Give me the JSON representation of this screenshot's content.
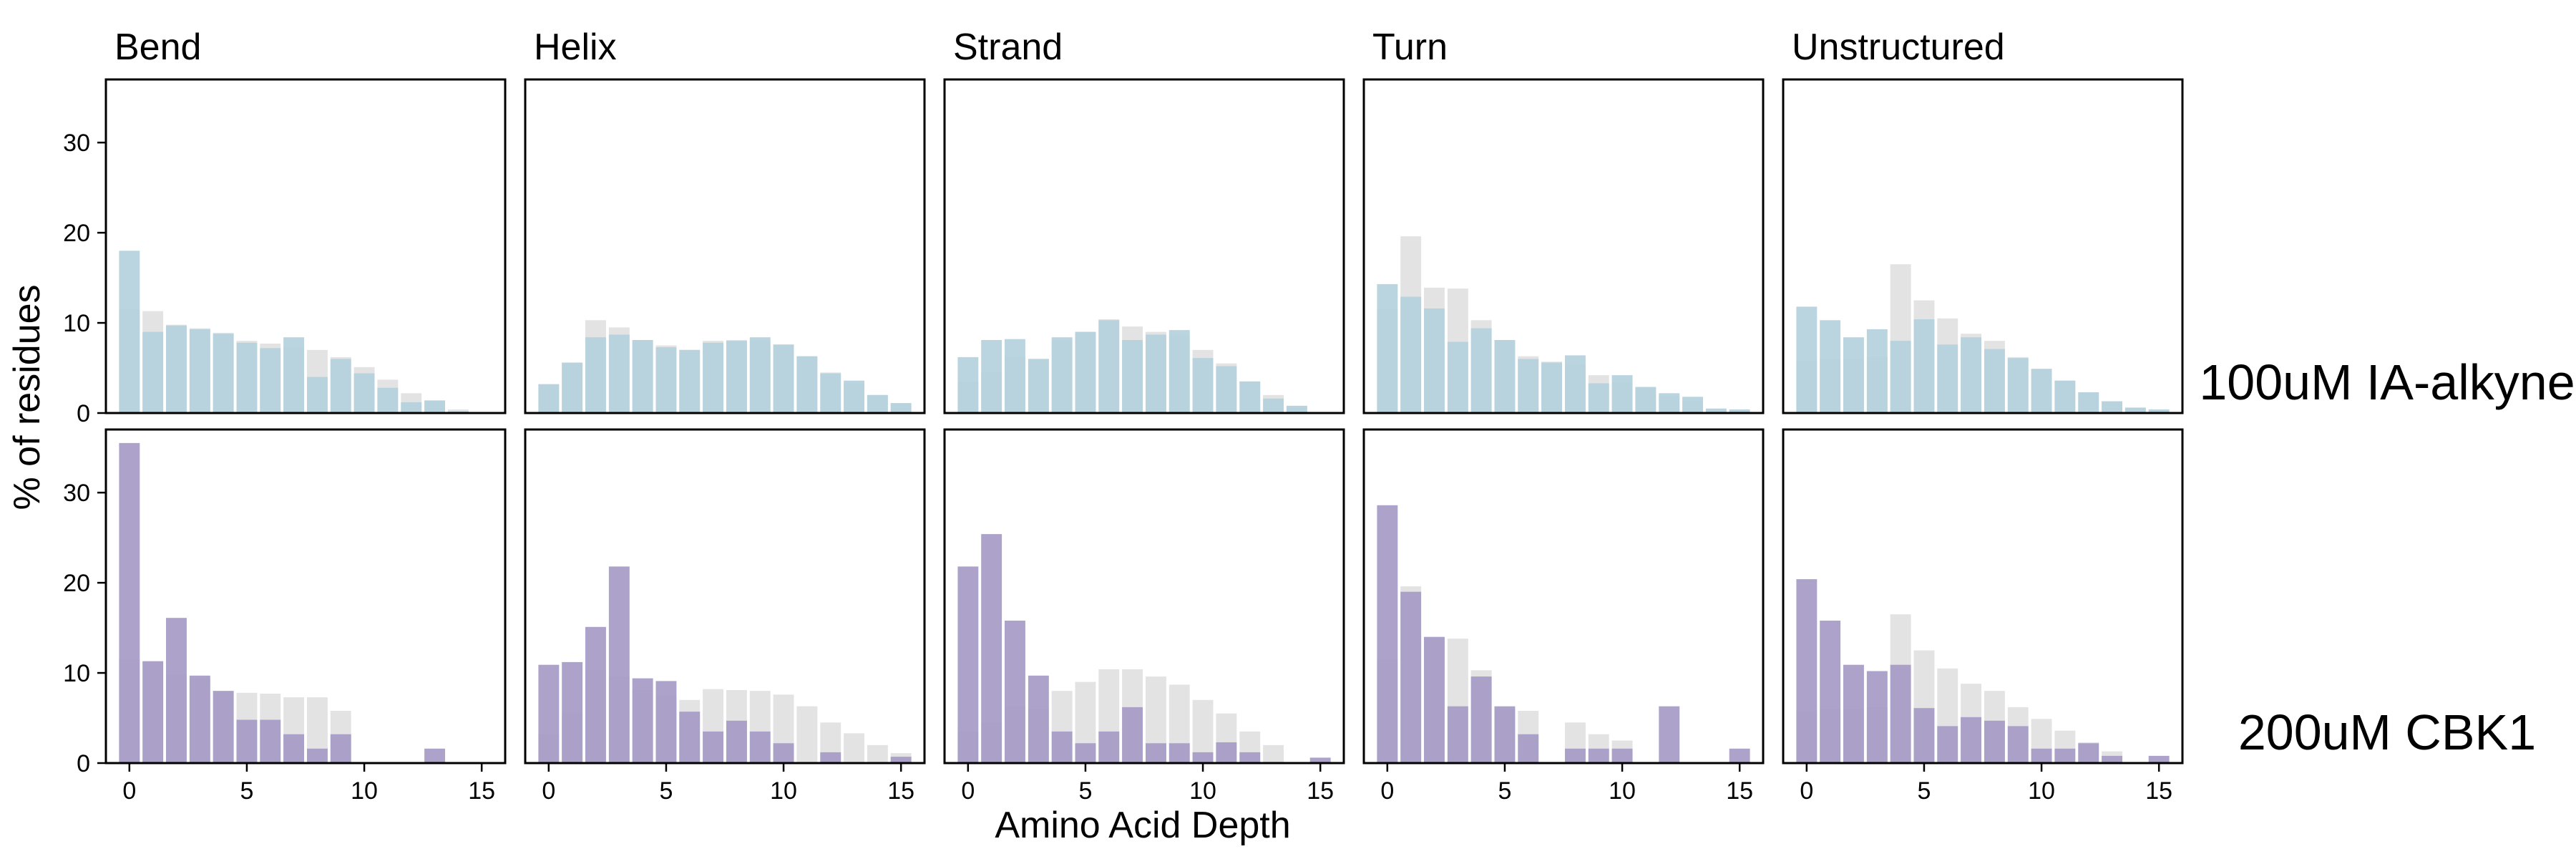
{
  "figure": {
    "ylabel": "% of residues",
    "xlabel": "Amino Acid Depth",
    "columns": [
      "Bend",
      "Helix",
      "Strand",
      "Turn",
      "Unstructured"
    ],
    "rows": [
      "100uM IA-alkyne",
      "200uM CBK1"
    ],
    "colors": {
      "background_bars": "#e3e3e3",
      "row1_bars": "#b3d0dd",
      "row2_bars": "#a398c4",
      "axes": "#000000"
    }
  },
  "chart_data": {
    "type": "bar",
    "layout": "faceted grid, 2 rows x 5 columns, shared axes",
    "xlim": [
      -1,
      16
    ],
    "ylim": [
      0,
      37
    ],
    "xticks": [
      0,
      5,
      10,
      15
    ],
    "yticks": [
      0,
      10,
      20,
      30
    ],
    "grid": false,
    "x": [
      0,
      1,
      2,
      3,
      4,
      5,
      6,
      7,
      8,
      9,
      10,
      11,
      12,
      13,
      14,
      15
    ],
    "panels": [
      {
        "row": "100uM IA-alkyne",
        "column": "Bend",
        "series": [
          {
            "values": [
              11.5,
              11.3,
              9.8,
              9.4,
              8.9,
              8.0,
              7.7,
              7.3,
              7.0,
              6.2,
              5.1,
              3.7,
              2.2,
              1.4,
              0.4,
              0.0
            ]
          },
          {
            "values": [
              18.0,
              9.0,
              9.7,
              9.3,
              8.8,
              7.8,
              7.2,
              8.4,
              4.0,
              6.0,
              4.4,
              2.8,
              1.2,
              1.4,
              0.2,
              0.0
            ]
          }
        ]
      },
      {
        "row": "100uM IA-alkyne",
        "column": "Helix",
        "series": [
          {
            "values": [
              3.2,
              5.6,
              10.3,
              9.5,
              8.1,
              7.5,
              7.0,
              8.0,
              8.1,
              8.0,
              7.6,
              6.3,
              4.5,
              3.3,
              2.0,
              1.1
            ]
          },
          {
            "values": [
              3.2,
              5.6,
              8.4,
              8.7,
              8.1,
              7.3,
              7.0,
              7.8,
              8.0,
              8.4,
              7.6,
              6.3,
              4.4,
              3.6,
              2.0,
              1.1
            ]
          }
        ]
      },
      {
        "row": "100uM IA-alkyne",
        "column": "Strand",
        "series": [
          {
            "values": [
              3.5,
              4.5,
              6.3,
              6.0,
              8.0,
              9.0,
              10.4,
              9.6,
              9.0,
              8.7,
              7.0,
              5.5,
              3.5,
              2.0,
              0.8,
              0.0
            ]
          },
          {
            "values": [
              6.2,
              8.1,
              8.2,
              6.0,
              8.4,
              9.0,
              10.3,
              8.1,
              8.7,
              9.2,
              6.1,
              5.2,
              3.5,
              1.6,
              0.8,
              0.0
            ]
          }
        ]
      },
      {
        "row": "100uM IA-alkyne",
        "column": "Turn",
        "series": [
          {
            "values": [
              11.5,
              19.6,
              13.9,
              13.8,
              10.3,
              8.1,
              6.3,
              5.7,
              5.4,
              4.2,
              3.4,
              2.8,
              1.9,
              1.3,
              0.4,
              0.4
            ]
          },
          {
            "values": [
              14.3,
              12.9,
              11.6,
              7.9,
              9.4,
              8.1,
              6.0,
              5.6,
              6.4,
              3.3,
              4.2,
              2.9,
              2.2,
              1.8,
              0.5,
              0.4
            ]
          }
        ]
      },
      {
        "row": "100uM IA-alkyne",
        "column": "Unstructured",
        "series": [
          {
            "values": [
              5.8,
              6.0,
              6.0,
              6.2,
              16.5,
              12.5,
              10.5,
              8.8,
              8.0,
              6.2,
              4.9,
              3.6,
              2.3,
              1.3,
              0.6,
              0.4
            ]
          },
          {
            "values": [
              11.8,
              10.3,
              8.4,
              9.3,
              8.0,
              10.4,
              7.6,
              8.4,
              7.1,
              6.1,
              4.9,
              3.6,
              2.3,
              1.3,
              0.6,
              0.4
            ]
          }
        ]
      },
      {
        "row": "200uM CBK1",
        "column": "Bend",
        "series": [
          {
            "values": [
              11.5,
              11.3,
              9.8,
              9.4,
              8.0,
              7.8,
              7.7,
              7.3,
              7.3,
              5.8,
              0,
              0,
              0,
              0,
              0,
              0
            ]
          },
          {
            "values": [
              35.5,
              11.3,
              16.1,
              9.7,
              8.0,
              4.8,
              4.8,
              3.2,
              1.6,
              3.2,
              0,
              0,
              0,
              1.6,
              0,
              0
            ]
          }
        ]
      },
      {
        "row": "200uM CBK1",
        "column": "Helix",
        "series": [
          {
            "values": [
              3.2,
              5.6,
              10.3,
              9.6,
              8.1,
              7.5,
              7.0,
              8.2,
              8.1,
              8.0,
              7.6,
              6.3,
              4.5,
              3.3,
              2.0,
              1.1
            ]
          },
          {
            "values": [
              10.9,
              11.2,
              15.1,
              21.8,
              9.4,
              9.1,
              5.7,
              3.5,
              4.7,
              3.5,
              2.2,
              0,
              1.2,
              0,
              0,
              0.7
            ]
          }
        ]
      },
      {
        "row": "200uM CBK1",
        "column": "Strand",
        "series": [
          {
            "values": [
              3.5,
              4.5,
              6.3,
              6.0,
              8.0,
              9.0,
              10.4,
              10.4,
              9.6,
              8.7,
              7.0,
              5.5,
              3.5,
              2.0,
              0,
              0
            ]
          },
          {
            "values": [
              21.8,
              25.4,
              15.8,
              9.7,
              3.5,
              2.2,
              3.5,
              6.2,
              2.2,
              2.2,
              1.2,
              2.3,
              1.2,
              0,
              0,
              0.6
            ]
          }
        ]
      },
      {
        "row": "200uM CBK1",
        "column": "Turn",
        "series": [
          {
            "values": [
              11.5,
              19.6,
              13.9,
              13.8,
              10.3,
              6.0,
              5.8,
              0,
              4.5,
              3.2,
              2.5,
              0,
              0,
              0,
              0,
              0
            ]
          },
          {
            "values": [
              28.6,
              19.0,
              14.0,
              6.3,
              9.6,
              6.3,
              3.2,
              0,
              1.6,
              1.6,
              1.6,
              0,
              6.3,
              0,
              0,
              1.6
            ]
          }
        ]
      },
      {
        "row": "200uM CBK1",
        "column": "Unstructured",
        "series": [
          {
            "values": [
              5.8,
              6.0,
              6.0,
              6.2,
              16.5,
              12.5,
              10.5,
              8.8,
              8.0,
              6.2,
              4.9,
              3.6,
              2.3,
              1.3,
              0,
              0
            ]
          },
          {
            "values": [
              20.4,
              15.8,
              10.9,
              10.2,
              10.9,
              6.1,
              4.1,
              5.1,
              4.7,
              4.1,
              1.6,
              1.6,
              2.2,
              0.8,
              0,
              0.8
            ]
          }
        ]
      }
    ]
  }
}
